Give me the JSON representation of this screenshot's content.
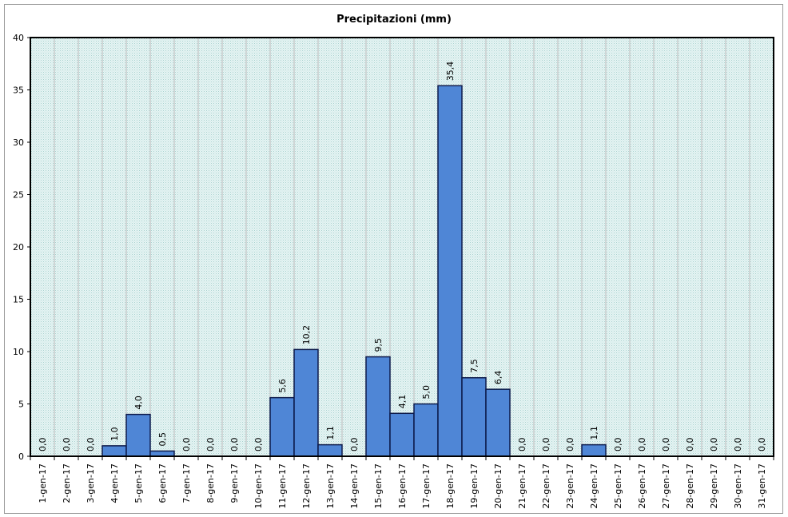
{
  "chart_data": {
    "type": "bar",
    "title": "Precipitazioni (mm)",
    "xlabel": "",
    "ylabel": "",
    "ylim": [
      0,
      40
    ],
    "yticks": [
      0,
      5,
      10,
      15,
      20,
      25,
      30,
      35,
      40
    ],
    "grid": true,
    "legend": "none",
    "colors": {
      "bar": "#4f86d6",
      "bar_border": "#0d1a4a",
      "plot_bg": "#dcefee",
      "grid": "#b8b8b8"
    },
    "categories": [
      "1-gen-17",
      "2-gen-17",
      "3-gen-17",
      "4-gen-17",
      "5-gen-17",
      "6-gen-17",
      "7-gen-17",
      "8-gen-17",
      "9-gen-17",
      "10-gen-17",
      "11-gen-17",
      "12-gen-17",
      "13-gen-17",
      "14-gen-17",
      "15-gen-17",
      "16-gen-17",
      "17-gen-17",
      "18-gen-17",
      "19-gen-17",
      "20-gen-17",
      "21-gen-17",
      "22-gen-17",
      "23-gen-17",
      "24-gen-17",
      "25-gen-17",
      "26-gen-17",
      "27-gen-17",
      "28-gen-17",
      "29-gen-17",
      "30-gen-17",
      "31-gen-17"
    ],
    "values": [
      0.0,
      0.0,
      0.0,
      1.0,
      4.0,
      0.5,
      0.0,
      0.0,
      0.0,
      0.0,
      5.6,
      10.2,
      1.1,
      0.0,
      9.5,
      4.1,
      5.0,
      35.4,
      7.5,
      6.4,
      0.0,
      0.0,
      0.0,
      1.1,
      0.0,
      0.0,
      0.0,
      0.0,
      0.0,
      0.0,
      0.0
    ],
    "data_labels": [
      "0,0",
      "0,0",
      "0,0",
      "1,0",
      "4,0",
      "0,5",
      "0,0",
      "0,0",
      "0,0",
      "0,0",
      "5,6",
      "10,2",
      "1,1",
      "0,0",
      "9,5",
      "4,1",
      "5,0",
      "35,4",
      "7,5",
      "6,4",
      "0,0",
      "0,0",
      "0,0",
      "1,1",
      "0,0",
      "0,0",
      "0,0",
      "0,0",
      "0,0",
      "0,0",
      "0,0"
    ]
  }
}
